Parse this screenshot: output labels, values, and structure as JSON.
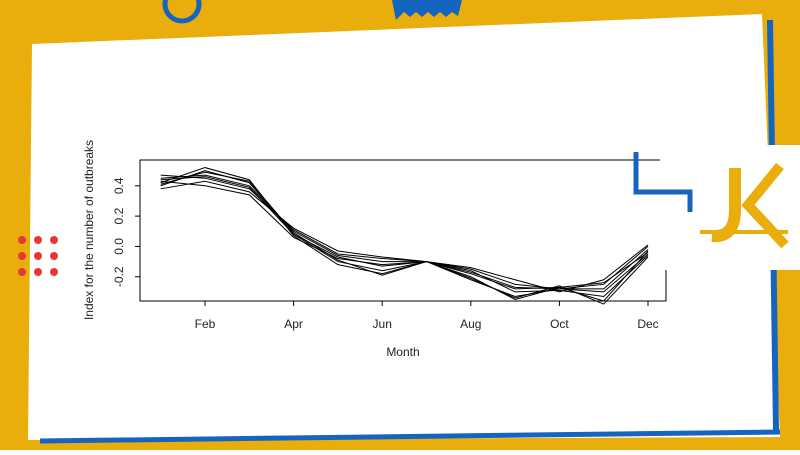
{
  "chart_data": {
    "type": "line",
    "y_label": "Index for the number of outbreaks",
    "x_label": "Month",
    "categories": [
      null,
      "Feb",
      null,
      "Apr",
      null,
      "Jun",
      null,
      "Aug",
      null,
      "Oct",
      null,
      "Dec"
    ],
    "ylim": [
      -0.36,
      0.57
    ],
    "yticks": [
      -0.2,
      {
        "value": 0,
        "label": "0.0"
      },
      0.2,
      0.4
    ],
    "series": [
      {
        "color": "#000000",
        "values": [
          0.42,
          0.52,
          0.44,
          0.07,
          -0.12,
          -0.18,
          -0.1,
          -0.22,
          -0.33,
          -0.28,
          -0.3,
          -0.05
        ]
      },
      {
        "color": "#000000",
        "values": [
          0.4,
          0.5,
          0.42,
          0.08,
          -0.1,
          -0.16,
          -0.1,
          -0.2,
          -0.35,
          -0.27,
          -0.36,
          -0.03
        ]
      },
      {
        "color": "#000000",
        "values": [
          0.45,
          0.47,
          0.4,
          0.1,
          -0.06,
          -0.1,
          -0.1,
          -0.16,
          -0.3,
          -0.29,
          -0.33,
          -0.06
        ]
      },
      {
        "color": "#000000",
        "values": [
          0.47,
          0.45,
          0.38,
          0.11,
          -0.05,
          -0.08,
          -0.1,
          -0.15,
          -0.25,
          -0.28,
          -0.25,
          0.0
        ]
      },
      {
        "color": "#000000",
        "values": [
          0.38,
          0.43,
          0.36,
          0.12,
          -0.03,
          -0.07,
          -0.1,
          -0.14,
          -0.22,
          -0.3,
          -0.22,
          0.01
        ]
      },
      {
        "color": "#000000",
        "values": [
          0.43,
          0.4,
          0.34,
          0.06,
          -0.08,
          -0.12,
          -0.1,
          -0.18,
          -0.28,
          -0.27,
          -0.24,
          -0.04
        ]
      },
      {
        "color": "#000000",
        "values": [
          0.41,
          0.49,
          0.43,
          0.09,
          -0.09,
          -0.19,
          -0.1,
          -0.21,
          -0.34,
          -0.26,
          -0.38,
          -0.07
        ]
      },
      {
        "color": "#000000",
        "values": [
          0.44,
          0.46,
          0.39,
          0.08,
          -0.07,
          -0.13,
          -0.1,
          -0.17,
          -0.27,
          -0.28,
          -0.28,
          -0.02
        ]
      }
    ]
  }
}
